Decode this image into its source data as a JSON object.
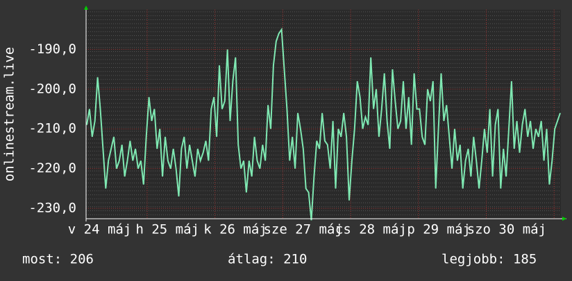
{
  "chart_data": {
    "type": "line",
    "y_label": "onlinestream.live",
    "x_labels": [
      "v 24 máj",
      "h 25 máj",
      "k 26 máj",
      "sze 27 máj",
      "cs 28 máj",
      "p 29 máj",
      "szo 30 máj"
    ],
    "ylim": [
      -232.6,
      -180
    ],
    "yticks": [
      {
        "value": -190,
        "label": "-190,0"
      },
      {
        "value": -200,
        "label": "-200,0"
      },
      {
        "value": -210,
        "label": "-210,0"
      },
      {
        "value": -220,
        "label": "-220,0"
      },
      {
        "value": -230,
        "label": "-230,0"
      }
    ],
    "grid": true,
    "color": "#7fe8b2",
    "values": [
      -209,
      -205,
      -212,
      -208,
      -197,
      -205,
      -215,
      -225,
      -218,
      -215,
      -212,
      -220,
      -218,
      -214,
      -222,
      -218,
      -213,
      -218,
      -215,
      -220,
      -218,
      -224,
      -212,
      -202,
      -208,
      -205,
      -215,
      -210,
      -222,
      -212,
      -218,
      -220,
      -215,
      -220,
      -227,
      -215,
      -212,
      -220,
      -214,
      -218,
      -222,
      -215,
      -218,
      -216,
      -213,
      -218,
      -205,
      -202,
      -212,
      -194,
      -205,
      -203,
      -190,
      -208,
      -198,
      -192,
      -214,
      -220,
      -218,
      -226,
      -218,
      -222,
      -212,
      -218,
      -220,
      -214,
      -218,
      -204,
      -210,
      -194,
      -188,
      -186,
      -185,
      -195,
      -205,
      -218,
      -212,
      -220,
      -206,
      -210,
      -215,
      -225,
      -226,
      -233,
      -222,
      -213,
      -215,
      -206,
      -213,
      -214,
      -220,
      -208,
      -225,
      -210,
      -212,
      -206,
      -212,
      -228,
      -218,
      -210,
      -198,
      -202,
      -210,
      -207,
      -209,
      -192,
      -205,
      -200,
      -212,
      -205,
      -196,
      -208,
      -215,
      -195,
      -203,
      -210,
      -208,
      -198,
      -210,
      -202,
      -214,
      -196,
      -205,
      -205,
      -212,
      -214,
      -200,
      -203,
      -198,
      -225,
      -210,
      -196,
      -208,
      -204,
      -212,
      -220,
      -210,
      -218,
      -214,
      -225,
      -218,
      -215,
      -222,
      -212,
      -218,
      -225,
      -218,
      -210,
      -216,
      -205,
      -222,
      -209,
      -205,
      -225,
      -215,
      -222,
      -210,
      -198,
      -215,
      -208,
      -216,
      -209,
      -205,
      -212,
      -208,
      -215,
      -210,
      -212,
      -208,
      -218,
      -210,
      -224,
      -218,
      -210,
      -208,
      -206
    ],
    "footer": {
      "current": "most: 206",
      "average": "átlag: 210",
      "best": "legjobb: 185"
    }
  }
}
